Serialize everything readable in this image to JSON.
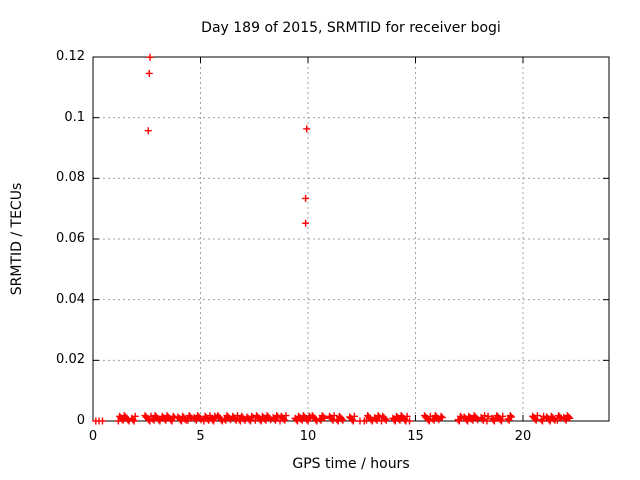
{
  "chart_data": {
    "type": "scatter",
    "title": "Day 189 of 2015, SRMTID for receiver bogi",
    "xlabel": "GPS time / hours",
    "ylabel": "SRMTID / TECUs",
    "xlim": [
      0,
      24
    ],
    "ylim": [
      0,
      0.12
    ],
    "xticks": [
      0,
      5,
      10,
      15,
      20
    ],
    "xtick_labels": [
      "0",
      "5",
      "10",
      "15",
      "20"
    ],
    "yticks": [
      0,
      0.02,
      0.04,
      0.06,
      0.08,
      0.1,
      0.12
    ],
    "ytick_labels": [
      "0",
      "0.02",
      "0.04",
      "0.06",
      "0.08",
      "0.1",
      "0.12"
    ],
    "grid": true,
    "legend_position": "none",
    "series": [
      {
        "name": "SRMTID",
        "marker": "plus",
        "color": "#ff0000"
      }
    ],
    "outlier_points": [
      [
        2.65,
        0.1199
      ],
      [
        2.62,
        0.1146
      ],
      [
        2.57,
        0.0957
      ],
      [
        9.94,
        0.0963
      ],
      [
        9.89,
        0.0734
      ],
      [
        9.89,
        0.0652
      ]
    ],
    "baseline_value_band": [
      0,
      0.002
    ],
    "baseline_isolated_x": [
      0.13,
      0.28,
      0.44,
      12.42,
      12.62,
      14.72
    ],
    "baseline_segments": [
      [
        1.18,
        1.72
      ],
      [
        1.8,
        1.97
      ],
      [
        2.42,
        2.72
      ],
      [
        2.78,
        3.16
      ],
      [
        3.22,
        3.55
      ],
      [
        3.62,
        3.8
      ],
      [
        3.95,
        4.35
      ],
      [
        4.42,
        4.62
      ],
      [
        4.7,
        5.08
      ],
      [
        5.16,
        5.44
      ],
      [
        5.5,
        5.72
      ],
      [
        5.8,
        6.05
      ],
      [
        6.12,
        6.42
      ],
      [
        6.5,
        6.72
      ],
      [
        6.8,
        7.1
      ],
      [
        7.16,
        7.45
      ],
      [
        7.55,
        8.3
      ],
      [
        8.38,
        8.62
      ],
      [
        8.7,
        9.0
      ],
      [
        9.4,
        10.14
      ],
      [
        10.2,
        10.45
      ],
      [
        10.55,
        10.8
      ],
      [
        11.0,
        11.25
      ],
      [
        11.35,
        11.63
      ],
      [
        11.94,
        12.18
      ],
      [
        12.72,
        13.02
      ],
      [
        13.1,
        13.35
      ],
      [
        13.42,
        13.68
      ],
      [
        13.95,
        14.62
      ],
      [
        15.42,
        15.72
      ],
      [
        15.81,
        16.09
      ],
      [
        16.19,
        16.28
      ],
      [
        16.98,
        17.16
      ],
      [
        17.26,
        17.63
      ],
      [
        17.67,
        17.91
      ],
      [
        18.05,
        18.23
      ],
      [
        18.32,
        18.42
      ],
      [
        18.56,
        18.7
      ],
      [
        18.78,
        19.1
      ],
      [
        19.3,
        19.5
      ],
      [
        20.45,
        20.7
      ],
      [
        20.85,
        21.0
      ],
      [
        21.1,
        21.5
      ],
      [
        21.6,
        21.8
      ],
      [
        21.9,
        22.2
      ]
    ]
  }
}
